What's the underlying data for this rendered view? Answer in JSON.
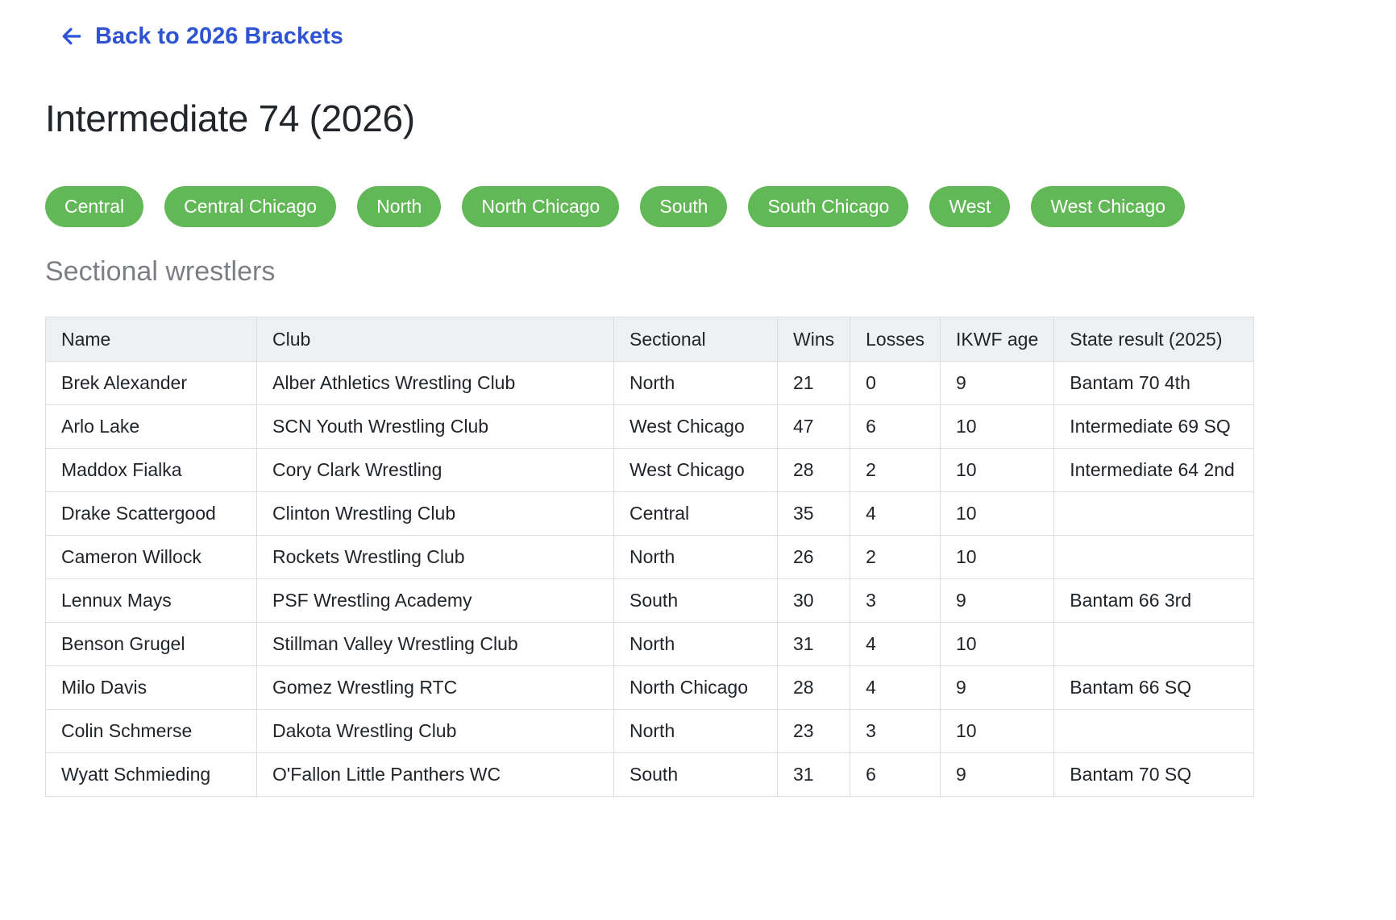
{
  "nav": {
    "back_label": "Back to 2026 Brackets"
  },
  "page_title": "Intermediate 74 (2026)",
  "sectionals": [
    "Central",
    "Central Chicago",
    "North",
    "North Chicago",
    "South",
    "South Chicago",
    "West",
    "West Chicago"
  ],
  "section_heading": "Sectional wrestlers",
  "table": {
    "columns": [
      "Name",
      "Club",
      "Sectional",
      "Wins",
      "Losses",
      "IKWF age",
      "State result (2025)"
    ],
    "rows": [
      [
        "Brek Alexander",
        "Alber Athletics Wrestling Club",
        "North",
        "21",
        "0",
        "9",
        "Bantam 70 4th"
      ],
      [
        "Arlo Lake",
        "SCN Youth Wrestling Club",
        "West Chicago",
        "47",
        "6",
        "10",
        "Intermediate 69 SQ"
      ],
      [
        "Maddox Fialka",
        "Cory Clark Wrestling",
        "West Chicago",
        "28",
        "2",
        "10",
        "Intermediate 64 2nd"
      ],
      [
        "Drake Scattergood",
        "Clinton Wrestling Club",
        "Central",
        "35",
        "4",
        "10",
        ""
      ],
      [
        "Cameron Willock",
        "Rockets Wrestling Club",
        "North",
        "26",
        "2",
        "10",
        ""
      ],
      [
        "Lennux Mays",
        "PSF Wrestling Academy",
        "South",
        "30",
        "3",
        "9",
        "Bantam 66 3rd"
      ],
      [
        "Benson Grugel",
        "Stillman Valley Wrestling Club",
        "North",
        "31",
        "4",
        "10",
        ""
      ],
      [
        "Milo Davis",
        "Gomez Wrestling RTC",
        "North Chicago",
        "28",
        "4",
        "9",
        "Bantam 66 SQ"
      ],
      [
        "Colin Schmerse",
        "Dakota Wrestling Club",
        "North",
        "23",
        "3",
        "10",
        ""
      ],
      [
        "Wyatt Schmieding",
        "O'Fallon Little Panthers WC",
        "South",
        "31",
        "6",
        "9",
        "Bantam 70 SQ"
      ]
    ]
  },
  "colors": {
    "link": "#2f54d3",
    "pill": "#62b857",
    "header_bg": "#eff0f2",
    "border": "#dcdde0"
  }
}
